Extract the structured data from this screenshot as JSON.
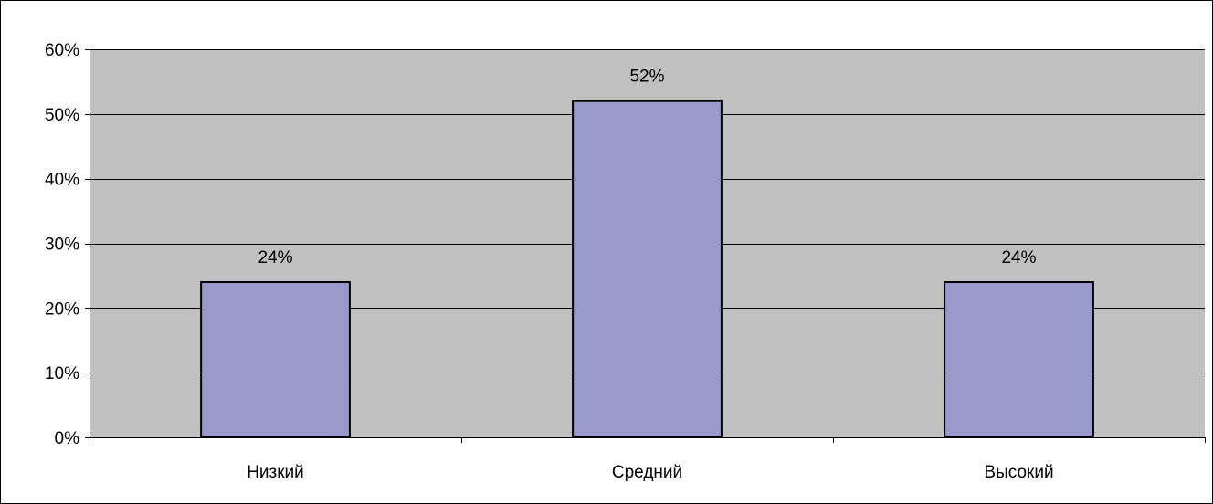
{
  "chart_data": {
    "type": "bar",
    "title": "",
    "xlabel": "",
    "ylabel": "",
    "categories": [
      "Низкий",
      "Средний",
      "Высокий"
    ],
    "values": [
      24,
      52,
      24
    ],
    "value_labels": [
      "24%",
      "52%",
      "24%"
    ],
    "ylim": [
      0,
      60
    ],
    "y_ticks": [
      0,
      10,
      20,
      30,
      40,
      50,
      60
    ],
    "y_tick_labels": [
      "0%",
      "10%",
      "20%",
      "30%",
      "40%",
      "50%",
      "60%"
    ],
    "grid": true,
    "legend": "none",
    "colors": {
      "plot_background": "#c0c0c0",
      "bar_fill": "#9999cc",
      "bar_stroke": "#000000",
      "gridline": "#000000"
    }
  }
}
